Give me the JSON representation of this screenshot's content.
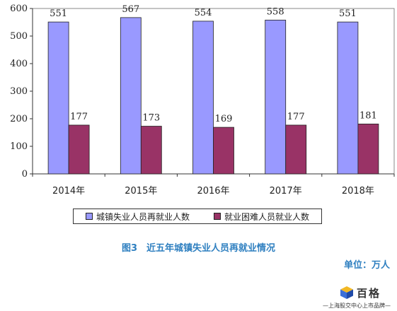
{
  "chart_data": {
    "type": "bar",
    "categories": [
      "2014年",
      "2015年",
      "2016年",
      "2017年",
      "2018年"
    ],
    "series": [
      {
        "name": "城镇失业人员再就业人数",
        "values": [
          551,
          567,
          554,
          558,
          551
        ],
        "color": "#9999ff"
      },
      {
        "name": "就业困难人员就业人数",
        "values": [
          177,
          173,
          169,
          177,
          181
        ],
        "color": "#993366"
      }
    ],
    "title": "图3　近五年城镇失业人员再就业情况",
    "unit": "单位：万人",
    "ylim": [
      0,
      600
    ],
    "yticks": [
      0,
      100,
      200,
      300,
      400,
      500,
      600
    ],
    "grid": false,
    "legend": "bottom"
  },
  "watermark": {
    "name": "百格",
    "tagline": "—上海股交中心上市品牌—",
    "colors": [
      "#3b6fd8",
      "#f2b824"
    ]
  }
}
